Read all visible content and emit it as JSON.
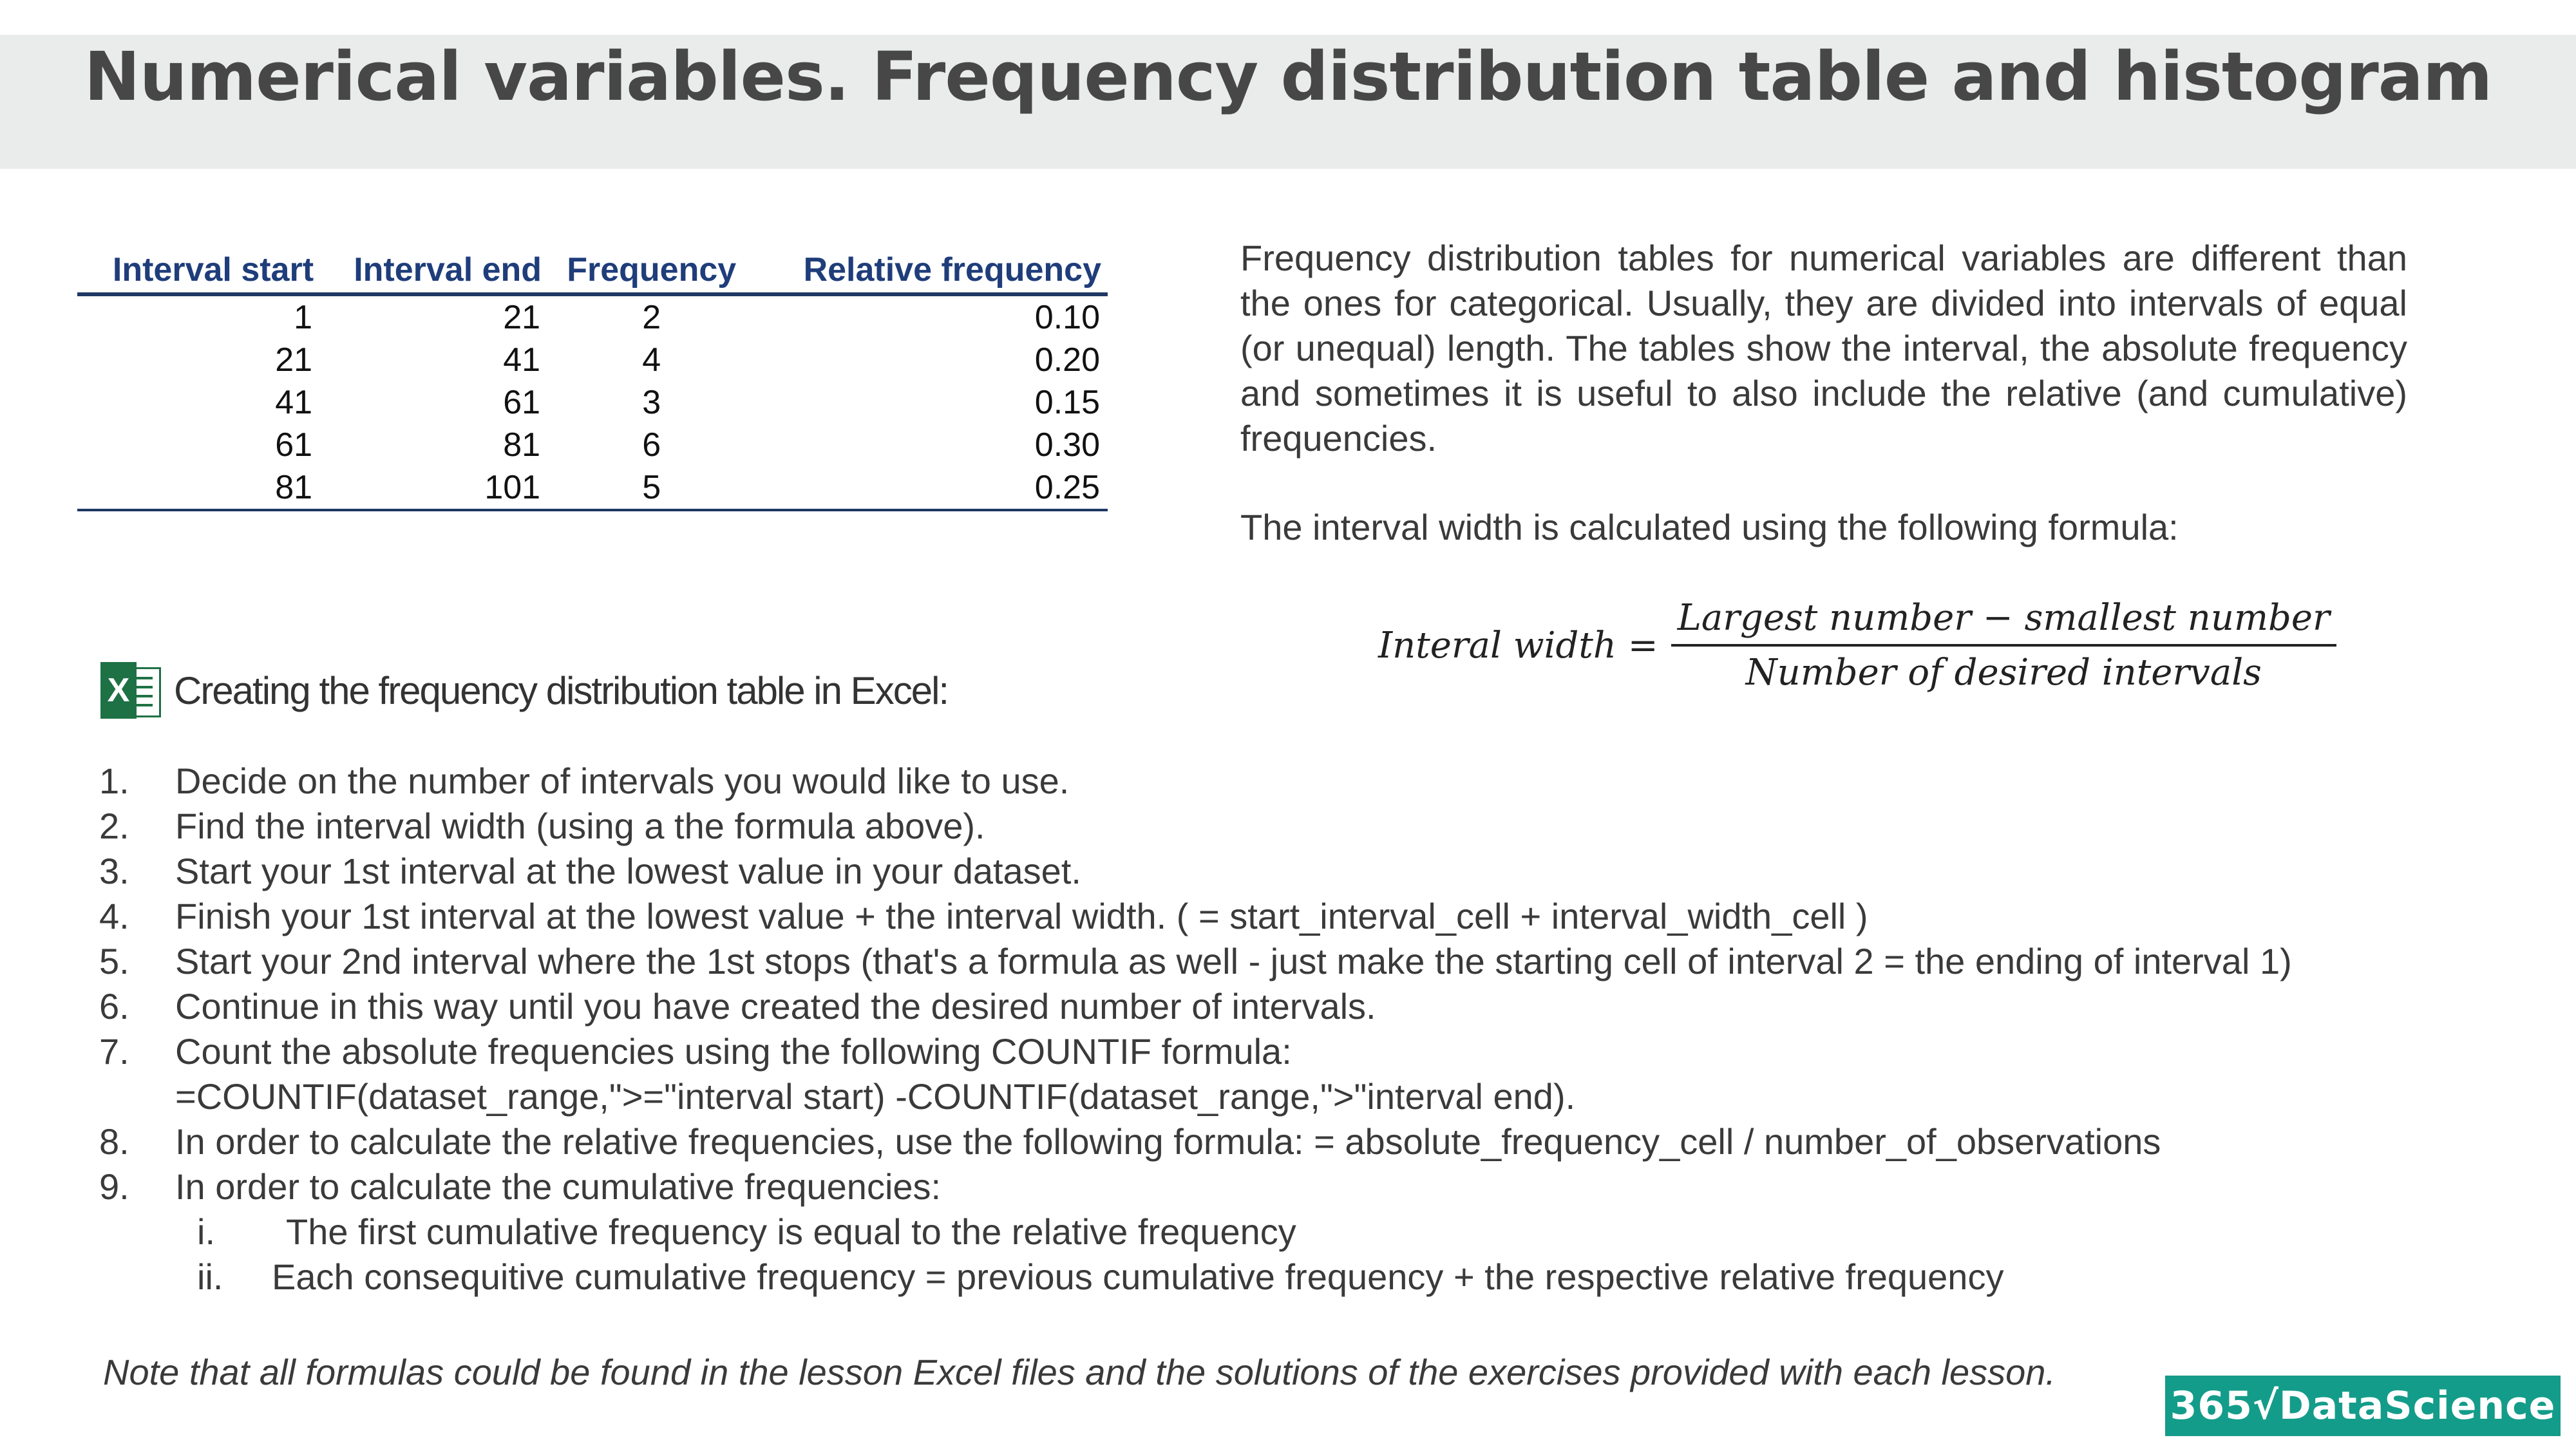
{
  "title": "Numerical variables. Frequency distribution table and histogram",
  "table": {
    "headers": [
      "Interval start",
      "Interval end",
      "Frequency",
      "Relative frequency"
    ],
    "rows": [
      [
        "1",
        "21",
        "2",
        "0.10"
      ],
      [
        "21",
        "41",
        "4",
        "0.20"
      ],
      [
        "41",
        "61",
        "3",
        "0.15"
      ],
      [
        "61",
        "81",
        "6",
        "0.30"
      ],
      [
        "81",
        "101",
        "5",
        "0.25"
      ]
    ]
  },
  "description": "Frequency distribution tables for numerical variables are different than the ones for categorical. Usually, they are divided into intervals of equal (or unequal) length. The tables show the interval, the absolute frequency and sometimes it is useful to also include the relative (and cumulative) frequencies.",
  "formula_intro": "The interval width is calculated using the following formula:",
  "formula": {
    "lhs": "Interal width =",
    "numerator": "Largest number  − smallest number",
    "denominator": "Number of  desired intervals"
  },
  "excel_section": {
    "icon": "excel-icon",
    "icon_letter": "X",
    "heading": "Creating the frequency distribution table in Excel:"
  },
  "steps": [
    {
      "no": "1.",
      "text": "Decide on the number of intervals you would like to use."
    },
    {
      "no": "2.",
      "text": "Find the interval width (using a the formula above)."
    },
    {
      "no": "3.",
      "text": "Start your 1st interval at the lowest value in your dataset."
    },
    {
      "no": "4.",
      "text": "Finish your 1st interval at the lowest value + the interval width. ( = start_interval_cell + interval_width_cell )"
    },
    {
      "no": "5.",
      "text": "Start your 2nd interval where the 1st stops (that's a formula as well - just make the starting cell of interval 2 = the ending of interval 1)"
    },
    {
      "no": "6.",
      "text": "Continue in this way until you have created the desired number of intervals."
    },
    {
      "no": "7.",
      "text": "Count the absolute frequencies using the following COUNTIF formula:",
      "cont": "=COUNTIF(dataset_range,\">=\"interval start) -COUNTIF(dataset_range,\">\"interval end)."
    },
    {
      "no": "8.",
      "text": "In order to calculate the relative frequencies, use the following formula: = absolute_frequency_cell / number_of_observations"
    },
    {
      "no": "9.",
      "text": "In order to calculate the cumulative frequencies:"
    }
  ],
  "substeps": [
    {
      "no": "i.",
      "text": "The first cumulative frequency is equal to the relative frequency"
    },
    {
      "no": "ii.",
      "text": "Each consequitive cumulative frequency = previous cumulative frequency + the respective relative frequency"
    }
  ],
  "note": "Note that all formulas could be found in the lesson Excel files and the solutions of the exercises provided with each lesson.",
  "logo_text": "365√DataScience"
}
